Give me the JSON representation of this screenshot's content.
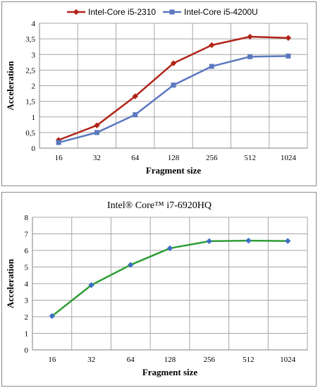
{
  "chart_data": [
    {
      "type": "line",
      "title": "",
      "xlabel": "Fragment size",
      "ylabel": "Acceleration",
      "categories": [
        "16",
        "32",
        "64",
        "128",
        "256",
        "512",
        "1024"
      ],
      "ylim": [
        0,
        4
      ],
      "yticks": [
        "0",
        "0,5",
        "1",
        "1,5",
        "2",
        "2,5",
        "3",
        "3,5",
        "4"
      ],
      "grid": true,
      "legend": "top",
      "series": [
        {
          "name": "Intel-Core i5-2310",
          "color": "#b02418",
          "marker": "diamond",
          "values": [
            0.26,
            0.73,
            1.66,
            2.72,
            3.3,
            3.57,
            3.53
          ]
        },
        {
          "name": "Intel-Core i5-4200U",
          "color": "#5b78c0",
          "marker": "square",
          "values": [
            0.18,
            0.5,
            1.07,
            2.02,
            2.62,
            2.93,
            2.95
          ]
        }
      ]
    },
    {
      "type": "line",
      "title": "Intel® Core™ i7-6920HQ",
      "xlabel": "Fragment size",
      "ylabel": "Acceleration",
      "categories": [
        "16",
        "32",
        "64",
        "128",
        "256",
        "512",
        "1024"
      ],
      "ylim": [
        0,
        8
      ],
      "yticks": [
        "0",
        "1",
        "2",
        "3",
        "4",
        "5",
        "6",
        "7",
        "8"
      ],
      "grid": true,
      "series": [
        {
          "color": "#2e9e35",
          "marker": "diamond",
          "marker_color": "#3d6fc4",
          "values": [
            2.04,
            3.91,
            5.13,
            6.13,
            6.56,
            6.59,
            6.57
          ]
        }
      ]
    }
  ]
}
